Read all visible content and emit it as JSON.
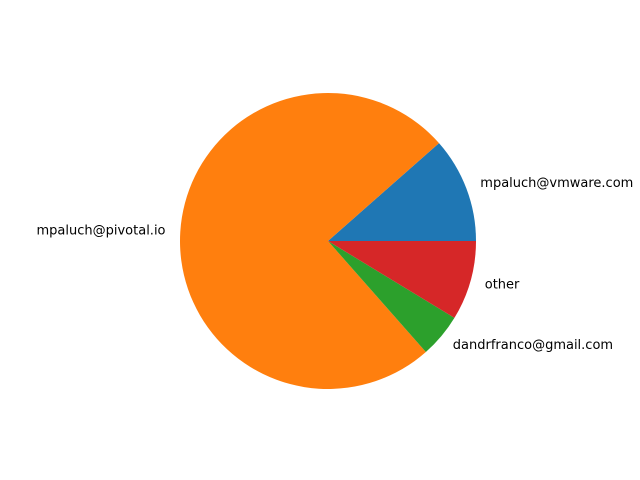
{
  "chart_data": {
    "type": "pie",
    "title": "",
    "start_angle_deg": 0,
    "direction": "counterclockwise",
    "slices": [
      {
        "label": "mpaluch@vmware.com",
        "value": 11.5,
        "color": "#1f77b4"
      },
      {
        "label": "mpaluch@pivotal.io",
        "value": 75.0,
        "color": "#ff7f0e"
      },
      {
        "label": "dandrfranco@gmail.com",
        "value": 4.8,
        "color": "#2ca02c"
      },
      {
        "label": "other",
        "value": 8.7,
        "color": "#d62728"
      }
    ]
  }
}
